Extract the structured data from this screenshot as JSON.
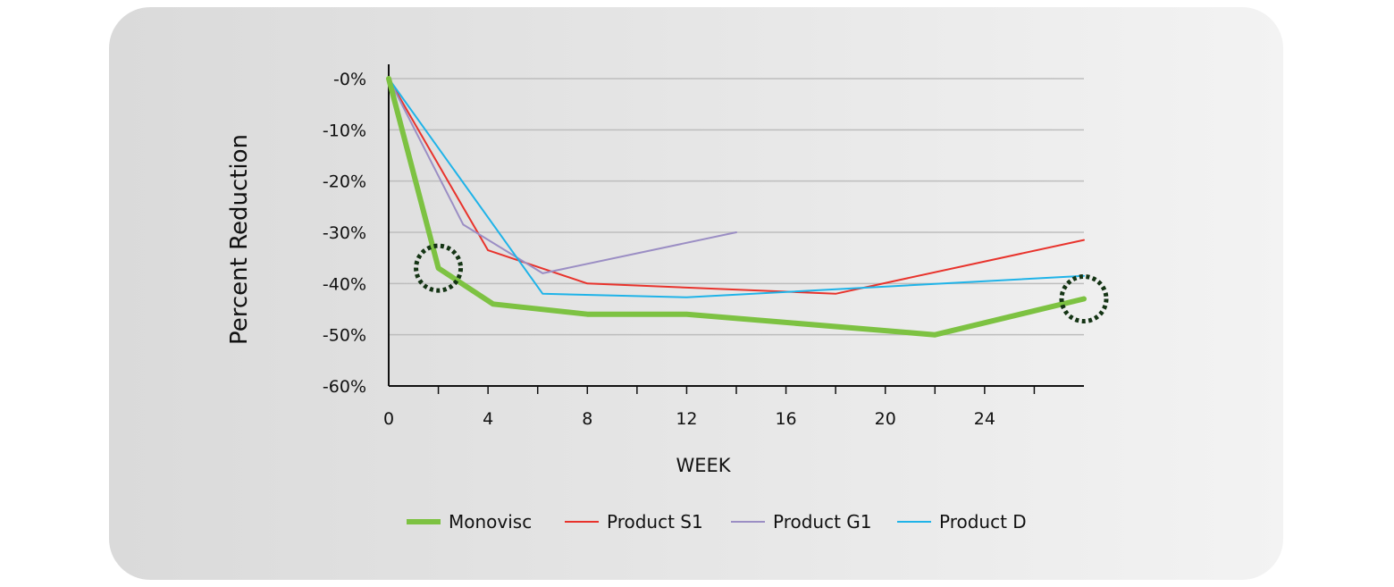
{
  "chart_data": {
    "type": "line",
    "xlabel": "WEEK",
    "ylabel": "Percent Reduction",
    "xlim": [
      0,
      28
    ],
    "ylim": [
      -60,
      0
    ],
    "x_ticks": [
      0,
      4,
      8,
      12,
      16,
      20,
      24
    ],
    "x_minor_ticks": [
      2,
      6,
      10,
      14,
      18,
      22,
      26
    ],
    "y_ticks": [
      {
        "value": 0,
        "label": "-0%"
      },
      {
        "value": -10,
        "label": "-10%"
      },
      {
        "value": -20,
        "label": "-20%"
      },
      {
        "value": -30,
        "label": "-30%"
      },
      {
        "value": -40,
        "label": "-40%"
      },
      {
        "value": -50,
        "label": "-50%"
      },
      {
        "value": -60,
        "label": "-60%"
      }
    ],
    "grid": "horizontal",
    "legend_position": "bottom",
    "series": [
      {
        "name": "Monovisc",
        "color": "#7dc242",
        "emphasis": "thick",
        "x": [
          0,
          2,
          4.2,
          8,
          12,
          22,
          28
        ],
        "y": [
          0,
          -37,
          -44,
          -46,
          -46,
          -50,
          -43
        ]
      },
      {
        "name": "Product S1",
        "color": "#e8332c",
        "x": [
          0,
          4,
          8,
          18,
          28
        ],
        "y": [
          0,
          -33.5,
          -40,
          -42,
          -31.5
        ]
      },
      {
        "name": "Product G1",
        "color": "#9b8ec4",
        "x": [
          0,
          3,
          6.2,
          14
        ],
        "y": [
          0,
          -28.5,
          -38,
          -30
        ]
      },
      {
        "name": "Product D",
        "color": "#1fb3e8",
        "x": [
          0,
          6.2,
          12,
          28
        ],
        "y": [
          0,
          -42,
          -42.7,
          -38.5
        ]
      }
    ],
    "highlights": [
      {
        "series": "Monovisc",
        "x": 2,
        "y": -37,
        "style": "dotted-circle",
        "color": "#143414"
      },
      {
        "series": "Monovisc",
        "x": 28,
        "y": -43,
        "style": "dotted-circle",
        "color": "#143414"
      }
    ]
  }
}
